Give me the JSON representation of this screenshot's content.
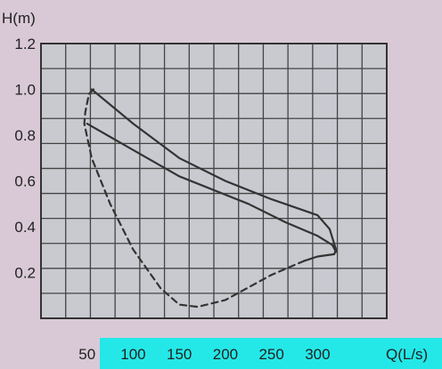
{
  "chart_data": {
    "type": "line",
    "title": "",
    "xlabel": "Q(L/s)",
    "ylabel": "H(m)",
    "xlim": [
      0,
      375
    ],
    "ylim": [
      0,
      1.2
    ],
    "grid": true,
    "x_tick_values": [
      50,
      100,
      150,
      200,
      250,
      300
    ],
    "x_tick_labels": [
      "50",
      "100",
      "150",
      "200",
      "250",
      "300"
    ],
    "y_tick_values": [
      0.2,
      0.4,
      0.6,
      0.8,
      1.0,
      1.2
    ],
    "y_tick_labels": [
      "0.2",
      "0.4",
      "0.6",
      "0.8",
      "1.0",
      "1.2"
    ],
    "series": [
      {
        "style": "solid",
        "points": [
          [
            50,
            0.85
          ],
          [
            150,
            0.62
          ],
          [
            225,
            0.5
          ],
          [
            265,
            0.42
          ],
          [
            300,
            0.36
          ],
          [
            316,
            0.32
          ],
          [
            320,
            0.29
          ]
        ]
      },
      {
        "style": "solid",
        "points": [
          [
            55,
            1.0
          ],
          [
            100,
            0.85
          ],
          [
            150,
            0.7
          ],
          [
            200,
            0.6
          ],
          [
            250,
            0.52
          ],
          [
            300,
            0.45
          ],
          [
            313,
            0.39
          ],
          [
            320,
            0.3
          ],
          [
            318,
            0.28
          ],
          [
            300,
            0.27
          ],
          [
            285,
            0.25
          ]
        ]
      },
      {
        "style": "dashed",
        "points": [
          [
            57,
            1.0
          ],
          [
            52,
            0.98
          ],
          [
            48,
            0.9
          ],
          [
            47,
            0.85
          ],
          [
            55,
            0.7
          ],
          [
            75,
            0.5
          ],
          [
            100,
            0.3
          ],
          [
            130,
            0.13
          ],
          [
            150,
            0.06
          ],
          [
            170,
            0.05
          ],
          [
            200,
            0.08
          ],
          [
            250,
            0.19
          ],
          [
            285,
            0.25
          ]
        ]
      }
    ],
    "colors": {
      "line": "#333333",
      "grid": "#444444",
      "frame": "#333333",
      "plot_bg": "#c9cad0",
      "page_bg": "#d9c9d6",
      "x_axis_band": "#24e8e8"
    }
  }
}
